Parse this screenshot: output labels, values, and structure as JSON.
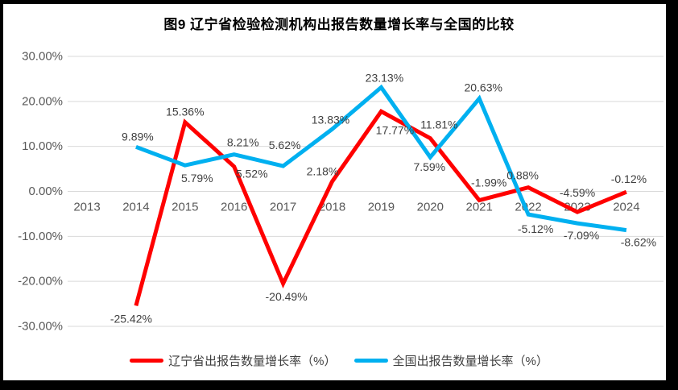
{
  "title": "图9  辽宁省检验检测机构出报告数量增长率与全国的比较",
  "styles": {
    "frame_color": "#000000",
    "background": "#FFFFFF",
    "grid_color": "#D9D9D9",
    "axis_text_color": "#595959",
    "data_label_color": "#404040",
    "title_color": "#000000",
    "legend_text_color": "#404040"
  },
  "chart_data": {
    "type": "line",
    "title": "图9  辽宁省检验检测机构出报告数量增长率与全国的比较",
    "categories": [
      "2013",
      "2014",
      "2015",
      "2016",
      "2017",
      "2018",
      "2019",
      "2020",
      "2021",
      "2022",
      "2023",
      "2024"
    ],
    "series": [
      {
        "name": "辽宁省出报告数量增长率（%）",
        "color": "#FF0000",
        "values": [
          null,
          -25.42,
          15.36,
          5.52,
          -20.49,
          2.18,
          17.77,
          11.81,
          -1.99,
          0.88,
          -4.59,
          -0.12
        ],
        "labels": [
          null,
          "-25.42%",
          "15.36%",
          "5.52%",
          "-20.49%",
          "2.18%",
          "17.77%",
          "11.81%",
          "-1.99%",
          "0.88%",
          "-4.59%",
          "-0.12%"
        ],
        "label_offsets": [
          null,
          [
            -6,
            16
          ],
          [
            0,
            -13
          ],
          [
            22,
            9
          ],
          [
            4,
            16
          ],
          [
            -12,
            -13
          ],
          [
            17,
            23
          ],
          [
            11,
            -17
          ],
          [
            12,
            -22
          ],
          [
            -7,
            -15
          ],
          [
            0,
            -24
          ],
          [
            3,
            -16
          ]
        ]
      },
      {
        "name": "全国出报告数量增长率（%）",
        "color": "#00B0F0",
        "values": [
          null,
          9.89,
          5.79,
          8.21,
          5.62,
          13.83,
          23.13,
          7.59,
          20.63,
          -5.12,
          -7.09,
          -8.62
        ],
        "labels": [
          null,
          "9.89%",
          "5.79%",
          "8.21%",
          "5.62%",
          "13.83%",
          "23.13%",
          "7.59%",
          "20.63%",
          "-5.12%",
          "-7.09%",
          "-8.62%"
        ],
        "label_offsets": [
          null,
          [
            2,
            -13
          ],
          [
            15,
            16
          ],
          [
            11,
            -15
          ],
          [
            2,
            -26
          ],
          [
            -2,
            -12
          ],
          [
            4,
            -12
          ],
          [
            -1,
            12
          ],
          [
            5,
            -14
          ],
          [
            9,
            18
          ],
          [
            5,
            15
          ],
          [
            15,
            15
          ]
        ]
      }
    ],
    "xlabel": "",
    "ylabel": "",
    "ylim": [
      -30,
      30
    ],
    "yticks": [
      {
        "value": 30,
        "label": "30.00%"
      },
      {
        "value": 20,
        "label": "20.00%"
      },
      {
        "value": 10,
        "label": "10.00%"
      },
      {
        "value": 0,
        "label": "0.00%"
      },
      {
        "value": -10,
        "label": "-10.00%"
      },
      {
        "value": -20,
        "label": "-20.00%"
      },
      {
        "value": -30,
        "label": "-30.00%"
      }
    ],
    "grid": true,
    "legend_position": "bottom"
  },
  "legend": {
    "items": [
      {
        "label": "辽宁省出报告数量增长率（%）",
        "color": "#FF0000"
      },
      {
        "label": "全国出报告数量增长率（%）",
        "color": "#00B0F0"
      }
    ]
  }
}
